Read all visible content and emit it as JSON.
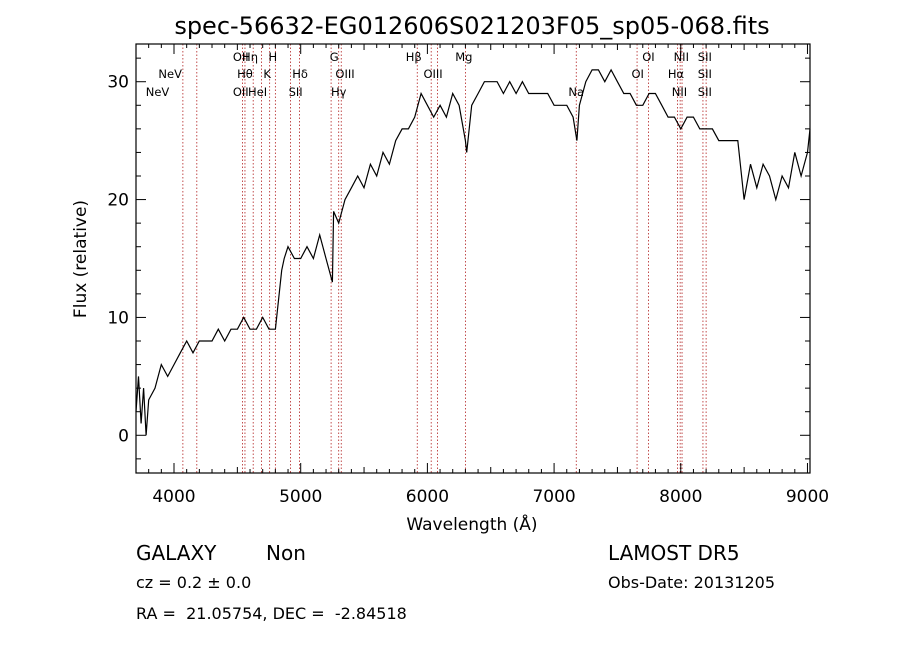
{
  "chart_data": {
    "type": "line",
    "title": "spec-56632-EG012606S021203F05_sp05-068.fits",
    "xlabel": "Wavelength (Å)",
    "ylabel": "Flux (relative)",
    "xlim": [
      3700,
      9020
    ],
    "ylim": [
      -3.2,
      33.2
    ],
    "xticks": [
      4000,
      5000,
      6000,
      7000,
      8000,
      9000
    ],
    "yticks": [
      0,
      10,
      20,
      30
    ],
    "grid": false,
    "series": [
      {
        "x": [
          3700,
          3720,
          3740,
          3760,
          3780,
          3800,
          3850,
          3900,
          3950,
          4000,
          4050,
          4100,
          4150,
          4200,
          4250,
          4300,
          4350,
          4400,
          4450,
          4500,
          4550,
          4600,
          4650,
          4700,
          4750,
          4800,
          4850,
          4870,
          4900,
          4950,
          5000,
          5050,
          5100,
          5150,
          5200,
          5250,
          5260,
          5300,
          5350,
          5400,
          5450,
          5500,
          5550,
          5600,
          5650,
          5700,
          5750,
          5800,
          5850,
          5900,
          5950,
          6000,
          6050,
          6100,
          6150,
          6200,
          6250,
          6300,
          6310,
          6350,
          6400,
          6450,
          6500,
          6550,
          6600,
          6650,
          6700,
          6750,
          6800,
          6850,
          6900,
          6950,
          7000,
          7050,
          7100,
          7150,
          7180,
          7200,
          7250,
          7300,
          7350,
          7400,
          7450,
          7500,
          7550,
          7600,
          7650,
          7700,
          7750,
          7800,
          7850,
          7900,
          7950,
          8000,
          8050,
          8100,
          8150,
          8200,
          8250,
          8300,
          8350,
          8400,
          8450,
          8500,
          8550,
          8600,
          8650,
          8700,
          8750,
          8800,
          8850,
          8900,
          8950,
          9000,
          9020
        ],
        "y": [
          2,
          5,
          1,
          4,
          0,
          3,
          4,
          6,
          5,
          6,
          7,
          8,
          7,
          8,
          8,
          8,
          9,
          8,
          9,
          9,
          10,
          9,
          9,
          10,
          9,
          9,
          14,
          15,
          16,
          15,
          15,
          16,
          15,
          17,
          15,
          13,
          19,
          18,
          20,
          21,
          22,
          21,
          23,
          22,
          24,
          23,
          25,
          26,
          26,
          27,
          29,
          28,
          27,
          28,
          27,
          29,
          28,
          25,
          24,
          28,
          29,
          30,
          30,
          30,
          29,
          30,
          29,
          30,
          29,
          29,
          29,
          29,
          28,
          28,
          28,
          27,
          25,
          28,
          30,
          31,
          31,
          30,
          31,
          30,
          29,
          29,
          28,
          28,
          29,
          29,
          28,
          27,
          27,
          26,
          27,
          27,
          26,
          26,
          26,
          25,
          25,
          25,
          25,
          20,
          23,
          21,
          23,
          22,
          20,
          22,
          21,
          24,
          22,
          24,
          26
        ],
        "color": "#000000"
      }
    ],
    "line_markers": [
      {
        "label": "NeV",
        "x": 3870,
        "row": 3
      },
      {
        "label": "NeV",
        "x": 3970,
        "row": 2
      },
      {
        "label": "OII",
        "x": 4527,
        "row": 3
      },
      {
        "label": "OII",
        "x": 4527,
        "row": 1
      },
      {
        "label": "Hη",
        "x": 4600,
        "row": 1
      },
      {
        "label": "Hθ",
        "x": 4560,
        "row": 2
      },
      {
        "label": "HeI",
        "x": 4660,
        "row": 3
      },
      {
        "label": "K",
        "x": 4735,
        "row": 2
      },
      {
        "label": "H",
        "x": 4780,
        "row": 1
      },
      {
        "label": "Hδ",
        "x": 4995,
        "row": 2
      },
      {
        "label": "SII",
        "x": 4960,
        "row": 3
      },
      {
        "label": "G",
        "x": 5265,
        "row": 1
      },
      {
        "label": "OIII",
        "x": 5350,
        "row": 2
      },
      {
        "label": "Hγ",
        "x": 5300,
        "row": 3
      },
      {
        "label": "Hβ",
        "x": 5892,
        "row": 1
      },
      {
        "label": "OIII",
        "x": 6045,
        "row": 2
      },
      {
        "label": "Mg",
        "x": 6288,
        "row": 1
      },
      {
        "label": "Na",
        "x": 7175,
        "row": 3
      },
      {
        "label": "OI",
        "x": 7660,
        "row": 2
      },
      {
        "label": "OI",
        "x": 7745,
        "row": 1
      },
      {
        "label": "Hα",
        "x": 7962,
        "row": 2
      },
      {
        "label": "NII",
        "x": 8004,
        "row": 1
      },
      {
        "label": "NII",
        "x": 7990,
        "row": 3
      },
      {
        "label": "SII",
        "x": 8190,
        "row": 1
      },
      {
        "label": "SII",
        "x": 8190,
        "row": 2
      },
      {
        "label": "SII",
        "x": 8190,
        "row": 3
      }
    ],
    "line_positions": [
      4070,
      4180,
      4540,
      4560,
      4625,
      4690,
      4755,
      4800,
      4920,
      4990,
      5240,
      5300,
      5320,
      5920,
      6030,
      6080,
      6300,
      7175,
      7655,
      7745,
      7975,
      7995,
      8010,
      8175,
      8200
    ]
  },
  "info": {
    "class": "GALAXY",
    "subclass": "Non",
    "survey": "LAMOST DR5",
    "cz": "cz = 0.2 ± 0.0",
    "obs_date": "Obs-Date: 20131205",
    "coords": "RA =  21.05754, DEC =  -2.84518"
  },
  "colors": {
    "spectrum": "#000000",
    "line_marker": "#b22222",
    "axes": "#000000"
  }
}
